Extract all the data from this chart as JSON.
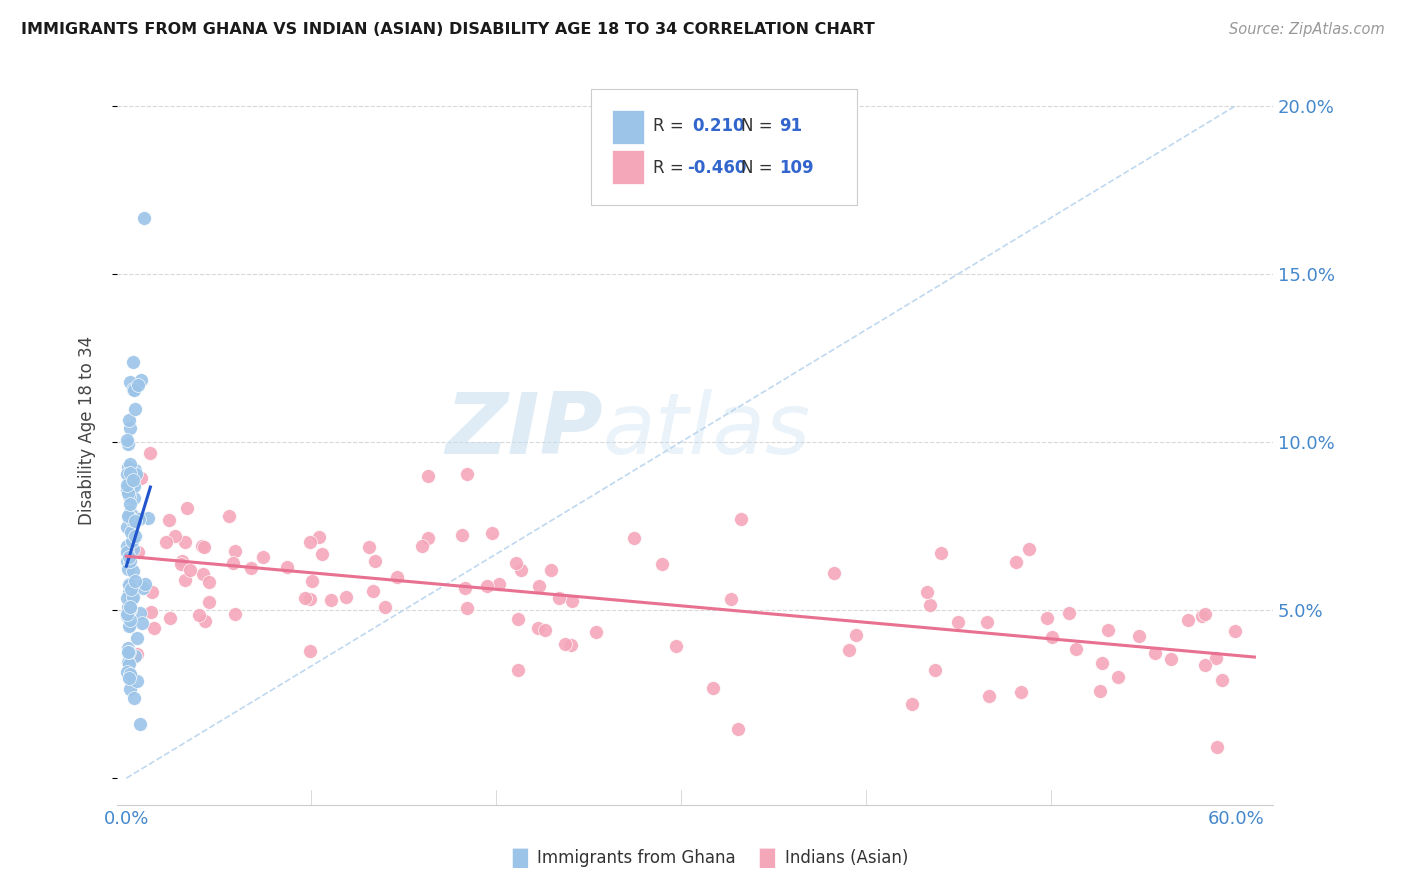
{
  "title": "IMMIGRANTS FROM GHANA VS INDIAN (ASIAN) DISABILITY AGE 18 TO 34 CORRELATION CHART",
  "source": "Source: ZipAtlas.com",
  "ylabel": "Disability Age 18 to 34",
  "ytick_vals": [
    0.0,
    0.05,
    0.1,
    0.15,
    0.2
  ],
  "ytick_labels": [
    "",
    "5.0%",
    "10.0%",
    "15.0%",
    "20.0%"
  ],
  "xlim": [
    -0.005,
    0.62
  ],
  "ylim": [
    -0.008,
    0.215
  ],
  "ghana_R": 0.21,
  "ghana_N": 91,
  "indian_R": -0.46,
  "indian_N": 109,
  "ghana_color": "#9bc4e8",
  "indian_color": "#f4a7b9",
  "ghana_line_color": "#2255cc",
  "indian_line_color": "#e87090",
  "diagonal_color": "#b8d4ee",
  "legend_label_ghana": "Immigrants from Ghana",
  "legend_label_indian": "Indians (Asian)",
  "watermark_zip": "ZIP",
  "watermark_atlas": "atlas",
  "background_color": "#ffffff"
}
